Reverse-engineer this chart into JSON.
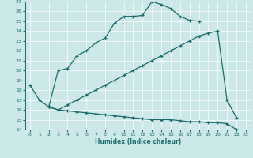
{
  "xlabel": "Humidex (Indice chaleur)",
  "bg_color": "#cce8e8",
  "grid_color": "#ffffff",
  "line_color": "#1a6b6b",
  "line1_x": [
    0,
    1,
    2,
    3,
    4,
    5,
    6,
    7,
    8,
    9,
    10,
    11,
    12,
    13,
    14,
    15,
    16,
    17,
    18
  ],
  "line1_y": [
    18.5,
    17.0,
    16.3,
    20.0,
    20.2,
    21.5,
    22.0,
    22.8,
    23.3,
    24.8,
    25.5,
    25.5,
    25.6,
    27.0,
    26.7,
    26.3,
    25.5,
    25.1,
    25.0
  ],
  "line2_x": [
    2,
    3,
    4,
    5,
    6,
    7,
    8,
    9,
    10,
    11,
    12,
    13,
    14,
    15,
    16,
    17,
    18,
    19,
    20,
    21,
    22
  ],
  "line2_y": [
    16.3,
    16.0,
    16.5,
    17.0,
    17.5,
    18.0,
    18.5,
    19.0,
    19.5,
    20.0,
    20.5,
    21.0,
    21.5,
    22.0,
    22.5,
    23.0,
    23.5,
    23.8,
    24.0,
    17.0,
    15.2
  ],
  "line3_x": [
    2,
    3,
    4,
    5,
    6,
    7,
    8,
    9,
    10,
    11,
    12,
    13,
    14,
    15,
    16,
    17,
    18,
    19,
    20,
    21,
    22,
    23
  ],
  "line3_y": [
    16.3,
    16.0,
    15.9,
    15.8,
    15.7,
    15.6,
    15.5,
    15.4,
    15.3,
    15.2,
    15.1,
    15.0,
    15.0,
    15.0,
    14.9,
    14.8,
    14.8,
    14.7,
    14.7,
    14.6,
    14.0,
    13.8
  ]
}
